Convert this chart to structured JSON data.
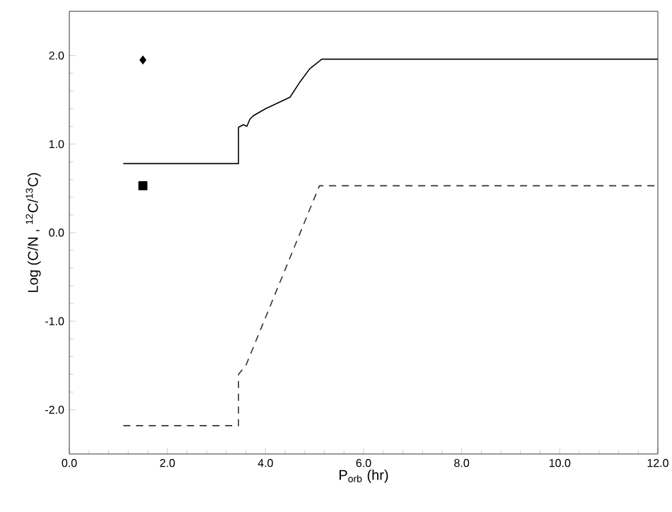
{
  "chart_data": {
    "type": "line",
    "xlabel": "P$_{orb}$ (hr)",
    "ylabel": "Log (C/N , $^{12}$C/$^{13}$C)",
    "xlim": [
      0,
      12
    ],
    "ylim": [
      -2.5,
      2.5
    ],
    "xticks": [
      {
        "value": 0,
        "label": "0.0"
      },
      {
        "value": 2,
        "label": "2.0"
      },
      {
        "value": 4,
        "label": "4.0"
      },
      {
        "value": 6,
        "label": "6.0"
      },
      {
        "value": 8,
        "label": "8.0"
      },
      {
        "value": 10,
        "label": "10.0"
      },
      {
        "value": 12,
        "label": "12.0"
      }
    ],
    "yticks": [
      {
        "value": -2,
        "label": "-2.0"
      },
      {
        "value": -1,
        "label": "-1.0"
      },
      {
        "value": 0,
        "label": "0.0"
      },
      {
        "value": 1,
        "label": "1.0"
      },
      {
        "value": 2,
        "label": "2.0"
      }
    ],
    "grid": false,
    "series": [
      {
        "color": "#000000",
        "line_style": "solid",
        "x": [
          1.1,
          3.45,
          3.45,
          3.55,
          3.62,
          3.68,
          3.75,
          4.0,
          4.5,
          4.7,
          4.9,
          5.15,
          12
        ],
        "values": [
          0.78,
          0.78,
          1.19,
          1.22,
          1.2,
          1.28,
          1.32,
          1.4,
          1.53,
          1.7,
          1.85,
          1.96,
          1.96
        ]
      },
      {
        "color": "#333333",
        "line_style": "dashed",
        "x": [
          1.1,
          3.45,
          3.45,
          3.6,
          5.1,
          12
        ],
        "values": [
          -2.18,
          -2.18,
          -1.6,
          -1.5,
          0.53,
          0.53
        ]
      },
      {
        "type": "scatter",
        "color": "#000000",
        "marker": "diamond",
        "x": [
          1.5
        ],
        "values": [
          1.95
        ]
      },
      {
        "type": "scatter",
        "color": "#000000",
        "marker": "square",
        "x": [
          1.5
        ],
        "values": [
          0.53
        ]
      }
    ]
  }
}
